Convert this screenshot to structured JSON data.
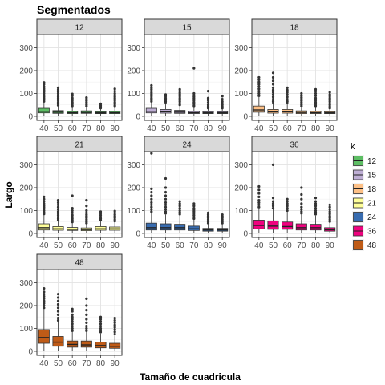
{
  "chart_data": {
    "type": "boxplot",
    "title": "Segmentados",
    "xlabel": "Tamaño de cuadricula",
    "ylabel": "Largo",
    "ylim": [
      0,
      340
    ],
    "y_ticks": [
      0,
      100,
      200,
      300
    ],
    "grid": true,
    "legend": {
      "title": "k",
      "placement": "right",
      "entries": [
        {
          "label": "12",
          "color": "#5DBE64"
        },
        {
          "label": "15",
          "color": "#BEAED4"
        },
        {
          "label": "18",
          "color": "#FDC086"
        },
        {
          "label": "21",
          "color": "#FFFF99"
        },
        {
          "label": "24",
          "color": "#386CB0"
        },
        {
          "label": "36",
          "color": "#F0027F"
        },
        {
          "label": "48",
          "color": "#BF5B17"
        }
      ]
    },
    "categories": [
      "40",
      "50",
      "60",
      "70",
      "80",
      "90"
    ],
    "facets": [
      {
        "label": "12",
        "color": "#5DBE64",
        "boxes": [
          {
            "x": "40",
            "q1": 15,
            "median": 22,
            "q3": 35,
            "whisker_low": 0,
            "whisker_high": 60,
            "outliers": [
              65,
              72,
              78,
              85,
              92,
              100,
              108,
              115,
              122,
              130,
              140,
              148
            ]
          },
          {
            "x": "50",
            "q1": 13,
            "median": 18,
            "q3": 25,
            "whisker_low": 0,
            "whisker_high": 43,
            "outliers": [
              48,
              55,
              62,
              70,
              78,
              85,
              92,
              100,
              108,
              116,
              125
            ]
          },
          {
            "x": "60",
            "q1": 12,
            "median": 16,
            "q3": 22,
            "whisker_low": 0,
            "whisker_high": 37,
            "outliers": [
              42,
              48,
              55,
              62,
              70,
              80,
              90,
              98
            ]
          },
          {
            "x": "70",
            "q1": 13,
            "median": 17,
            "q3": 24,
            "whisker_low": 0,
            "whisker_high": 40,
            "outliers": [
              45,
              52,
              60,
              68,
              75,
              82
            ]
          },
          {
            "x": "80",
            "q1": 12,
            "median": 15,
            "q3": 20,
            "whisker_low": 0,
            "whisker_high": 32,
            "outliers": [
              36,
              42,
              48,
              55
            ]
          },
          {
            "x": "90",
            "q1": 12,
            "median": 16,
            "q3": 22,
            "whisker_low": 0,
            "whisker_high": 37,
            "outliers": [
              42,
              48,
              55,
              62,
              70,
              78,
              85,
              92,
              100,
              110,
              120
            ]
          }
        ]
      },
      {
        "label": "15",
        "color": "#BEAED4",
        "boxes": [
          {
            "x": "40",
            "q1": 15,
            "median": 22,
            "q3": 35,
            "whisker_low": 0,
            "whisker_high": 60,
            "outliers": [
              65,
              72,
              80,
              88,
              95,
              102,
              110,
              118,
              125,
              135
            ]
          },
          {
            "x": "50",
            "q1": 14,
            "median": 20,
            "q3": 30,
            "whisker_low": 0,
            "whisker_high": 53,
            "outliers": [
              58,
              65,
              72,
              80,
              88,
              95
            ]
          },
          {
            "x": "60",
            "q1": 13,
            "median": 18,
            "q3": 26,
            "whisker_low": 0,
            "whisker_high": 45,
            "outliers": [
              50,
              58,
              65,
              72,
              80,
              88,
              95,
              102,
              110,
              118
            ]
          },
          {
            "x": "70",
            "q1": 12,
            "median": 16,
            "q3": 22,
            "whisker_low": 0,
            "whisker_high": 37,
            "outliers": [
              42,
              48,
              55,
              62,
              70,
              78,
              85,
              92,
              100,
              210
            ]
          },
          {
            "x": "80",
            "q1": 12,
            "median": 15,
            "q3": 20,
            "whisker_low": 0,
            "whisker_high": 32,
            "outliers": [
              36,
              42,
              50,
              60,
              70,
              80,
              110
            ]
          },
          {
            "x": "90",
            "q1": 12,
            "median": 15,
            "q3": 20,
            "whisker_low": 0,
            "whisker_high": 32,
            "outliers": [
              36,
              42,
              50,
              58,
              65,
              75,
              88
            ]
          }
        ]
      },
      {
        "label": "18",
        "color": "#FDC086",
        "boxes": [
          {
            "x": "40",
            "q1": 18,
            "median": 28,
            "q3": 45,
            "whisker_low": 0,
            "whisker_high": 85,
            "outliers": [
              90,
              100,
              110,
              120,
              130,
              140,
              150,
              160,
              170
            ]
          },
          {
            "x": "50",
            "q1": 14,
            "median": 20,
            "q3": 30,
            "whisker_low": 0,
            "whisker_high": 53,
            "outliers": [
              58,
              66,
              75,
              85,
              95,
              105,
              115,
              125,
              140,
              155,
              170,
              190
            ]
          },
          {
            "x": "60",
            "q1": 14,
            "median": 20,
            "q3": 30,
            "whisker_low": 0,
            "whisker_high": 53,
            "outliers": [
              58,
              66,
              75,
              85,
              95,
              105,
              115,
              125
            ]
          },
          {
            "x": "70",
            "q1": 12,
            "median": 17,
            "q3": 24,
            "whisker_low": 0,
            "whisker_high": 40,
            "outliers": [
              45,
              52,
              60,
              68,
              75,
              82,
              90,
              100
            ]
          },
          {
            "x": "80",
            "q1": 12,
            "median": 16,
            "q3": 22,
            "whisker_low": 0,
            "whisker_high": 37,
            "outliers": [
              42,
              48,
              55,
              62,
              70,
              80,
              90,
              100,
              110,
              118
            ]
          },
          {
            "x": "90",
            "q1": 12,
            "median": 15,
            "q3": 20,
            "whisker_low": 0,
            "whisker_high": 32,
            "outliers": [
              36,
              42,
              50,
              58,
              65,
              72,
              80,
              88,
              95,
              105
            ]
          }
        ]
      },
      {
        "label": "21",
        "color": "#FFFF99",
        "boxes": [
          {
            "x": "40",
            "q1": 15,
            "median": 25,
            "q3": 42,
            "whisker_low": 0,
            "whisker_high": 80,
            "outliers": [
              85,
              92,
              100,
              108,
              115,
              122,
              130,
              140,
              150,
              160
            ]
          },
          {
            "x": "50",
            "q1": 14,
            "median": 20,
            "q3": 30,
            "whisker_low": 0,
            "whisker_high": 53,
            "outliers": [
              58,
              65,
              72,
              80,
              88,
              95,
              105,
              115,
              125,
              135,
              145
            ]
          },
          {
            "x": "60",
            "q1": 13,
            "median": 18,
            "q3": 26,
            "whisker_low": 0,
            "whisker_high": 45,
            "outliers": [
              50,
              58,
              65,
              72,
              80,
              90,
              100,
              110,
              165
            ]
          },
          {
            "x": "70",
            "q1": 12,
            "median": 17,
            "q3": 24,
            "whisker_low": 0,
            "whisker_high": 40,
            "outliers": [
              45,
              52,
              60,
              68,
              75,
              82,
              90,
              100,
              120,
              145
            ]
          },
          {
            "x": "80",
            "q1": 14,
            "median": 20,
            "q3": 30,
            "whisker_low": 0,
            "whisker_high": 53,
            "outliers": [
              58,
              65,
              72,
              80,
              88,
              95
            ]
          },
          {
            "x": "90",
            "q1": 14,
            "median": 20,
            "q3": 28,
            "whisker_low": 0,
            "whisker_high": 49,
            "outliers": [
              54,
              60,
              68,
              75,
              82,
              90,
              98
            ]
          }
        ]
      },
      {
        "label": "24",
        "color": "#386CB0",
        "boxes": [
          {
            "x": "40",
            "q1": 15,
            "median": 25,
            "q3": 45,
            "whisker_low": 0,
            "whisker_high": 90,
            "outliers": [
              95,
              105,
              115,
              125,
              135,
              150,
              165,
              180,
              195,
              350
            ]
          },
          {
            "x": "50",
            "q1": 15,
            "median": 25,
            "q3": 42,
            "whisker_low": 0,
            "whisker_high": 82,
            "outliers": [
              88,
              95,
              105,
              115,
              125,
              135,
              150,
              165,
              180,
              200,
              240
            ]
          },
          {
            "x": "60",
            "q1": 15,
            "median": 25,
            "q3": 40,
            "whisker_low": 0,
            "whisker_high": 78,
            "outliers": [
              84,
              92,
              100,
              110,
              120,
              130,
              140
            ]
          },
          {
            "x": "70",
            "q1": 13,
            "median": 20,
            "q3": 32,
            "whisker_low": 0,
            "whisker_high": 60,
            "outliers": [
              65,
              72,
              80,
              88,
              95,
              102,
              110,
              120,
              130
            ]
          },
          {
            "x": "80",
            "q1": 10,
            "median": 15,
            "q3": 22,
            "whisker_low": 0,
            "whisker_high": 40,
            "outliers": [
              45,
              52,
              60,
              68,
              75,
              82,
              90
            ]
          },
          {
            "x": "90",
            "q1": 10,
            "median": 15,
            "q3": 22,
            "whisker_low": 0,
            "whisker_high": 40,
            "outliers": [
              45,
              52,
              60,
              68,
              75,
              82
            ]
          }
        ]
      },
      {
        "label": "36",
        "color": "#F0027F",
        "boxes": [
          {
            "x": "40",
            "q1": 20,
            "median": 35,
            "q3": 58,
            "whisker_low": 0,
            "whisker_high": 110,
            "outliers": [
              115,
              125,
              135,
              145,
              160,
              175,
              190,
              205
            ]
          },
          {
            "x": "50",
            "q1": 18,
            "median": 32,
            "q3": 55,
            "whisker_low": 0,
            "whisker_high": 105,
            "outliers": [
              110,
              120,
              130,
              140,
              155,
              300
            ]
          },
          {
            "x": "60",
            "q1": 18,
            "median": 30,
            "q3": 50,
            "whisker_low": 0,
            "whisker_high": 95,
            "outliers": [
              100,
              110,
              120,
              130,
              140,
              150
            ]
          },
          {
            "x": "70",
            "q1": 15,
            "median": 25,
            "q3": 42,
            "whisker_low": 0,
            "whisker_high": 82,
            "outliers": [
              88,
              95,
              105,
              115,
              130,
              150,
              170,
              200
            ]
          },
          {
            "x": "80",
            "q1": 15,
            "median": 25,
            "q3": 40,
            "whisker_low": 0,
            "whisker_high": 78,
            "outliers": [
              84,
              92,
              100,
              110,
              120,
              130,
              140,
              155
            ]
          },
          {
            "x": "90",
            "q1": 10,
            "median": 16,
            "q3": 25,
            "whisker_low": 0,
            "whisker_high": 47,
            "outliers": [
              52,
              60,
              68,
              76,
              85,
              95,
              105,
              115,
              125
            ]
          }
        ]
      },
      {
        "label": "48",
        "color": "#BF5B17",
        "boxes": [
          {
            "x": "40",
            "q1": 35,
            "median": 60,
            "q3": 95,
            "whisker_low": 0,
            "whisker_high": 185,
            "outliers": [
              190,
              200,
              210,
              220,
              230,
              240,
              250,
              260,
              275
            ]
          },
          {
            "x": "50",
            "q1": 22,
            "median": 40,
            "q3": 65,
            "whisker_low": 0,
            "whisker_high": 128,
            "outliers": [
              135,
              145,
              160,
              175,
              190,
              205,
              220,
              235,
              250
            ]
          },
          {
            "x": "60",
            "q1": 18,
            "median": 30,
            "q3": 45,
            "whisker_low": 0,
            "whisker_high": 85,
            "outliers": [
              90,
              100,
              110,
              120,
              130,
              140,
              150,
              160,
              175,
              185
            ]
          },
          {
            "x": "70",
            "q1": 18,
            "median": 28,
            "q3": 45,
            "whisker_low": 0,
            "whisker_high": 85,
            "outliers": [
              90,
              100,
              110,
              125,
              140,
              160,
              180,
              200,
              230
            ]
          },
          {
            "x": "80",
            "q1": 15,
            "median": 25,
            "q3": 40,
            "whisker_low": 0,
            "whisker_high": 78,
            "outliers": [
              84,
              92,
              100,
              110,
              120,
              130,
              140,
              150
            ]
          },
          {
            "x": "90",
            "q1": 13,
            "median": 22,
            "q3": 35,
            "whisker_low": 0,
            "whisker_high": 68,
            "outliers": [
              75,
              85,
              95,
              105,
              115,
              125,
              135,
              145
            ]
          }
        ]
      }
    ]
  }
}
